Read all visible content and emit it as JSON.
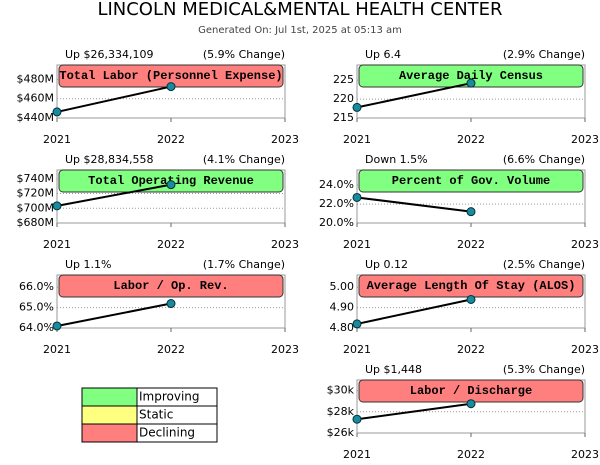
{
  "title": "LINCOLN MEDICAL&MENTAL HEALTH CENTER",
  "subtitle": "Generated On: Jul 1st, 2025 at 05:13 am",
  "chart_data": [
    {
      "type": "line",
      "title": "Total Labor (Personnel Expense)",
      "change": "Up $26,334,109",
      "percent_change": "(5.9% Change)",
      "color": "#ff7f7f",
      "x": [
        2021,
        2022
      ],
      "values": [
        446.3,
        472.6
      ],
      "xlim": [
        2021,
        2023
      ],
      "xticks": [
        2021,
        2022,
        2023
      ],
      "ylim": [
        440,
        495
      ],
      "yticks": [
        {
          "value": 440,
          "label": "$440M"
        },
        {
          "value": 460,
          "label": "$460M"
        },
        {
          "value": 480,
          "label": "$480M"
        }
      ]
    },
    {
      "type": "line",
      "title": "Average Daily Census",
      "change": "Up 6.4",
      "percent_change": "(2.9% Change)",
      "color": "#80ff80",
      "x": [
        2021,
        2022
      ],
      "values": [
        217.8,
        224.2
      ],
      "xlim": [
        2021,
        2023
      ],
      "xticks": [
        2021,
        2022,
        2023
      ],
      "ylim": [
        215,
        229
      ],
      "yticks": [
        215,
        220,
        225
      ]
    },
    {
      "type": "line",
      "title": "Total Operating Revenue",
      "change": "Up $28,834,558",
      "percent_change": "(4.1% Change)",
      "color": "#80ff80",
      "x": [
        2021,
        2022
      ],
      "values": [
        703.3,
        732.1
      ],
      "xlim": [
        2021,
        2023
      ],
      "xticks": [
        2021,
        2022,
        2023
      ],
      "ylim": [
        680,
        752
      ],
      "yticks": [
        {
          "value": 680,
          "label": "$680M"
        },
        {
          "value": 700,
          "label": "$700M"
        },
        {
          "value": 720,
          "label": "$720M"
        },
        {
          "value": 740,
          "label": "$740M"
        }
      ]
    },
    {
      "type": "line",
      "title": "Percent of Gov. Volume",
      "change": "Down 1.5%",
      "percent_change": "(6.6% Change)",
      "color": "#80ff80",
      "x": [
        2021,
        2022
      ],
      "values": [
        22.7,
        21.2
      ],
      "xlim": [
        2021,
        2023
      ],
      "xticks": [
        2021,
        2022,
        2023
      ],
      "ylim": [
        20,
        25.6
      ],
      "yticks": [
        {
          "value": 20,
          "label": "20.0%"
        },
        {
          "value": 22,
          "label": "22.0%"
        },
        {
          "value": 24,
          "label": "24.0%"
        }
      ]
    },
    {
      "type": "line",
      "title": "Labor / Op. Rev.",
      "change": "Up 1.1%",
      "percent_change": "(1.7% Change)",
      "color": "#ff7f7f",
      "x": [
        2021,
        2022
      ],
      "values": [
        64.1,
        65.2
      ],
      "xlim": [
        2021,
        2023
      ],
      "xticks": [
        2021,
        2022,
        2023
      ],
      "ylim": [
        64,
        66.6
      ],
      "yticks": [
        {
          "value": 64,
          "label": "64.0%"
        },
        {
          "value": 65,
          "label": "65.0%"
        },
        {
          "value": 66,
          "label": "66.0%"
        }
      ]
    },
    {
      "type": "line",
      "title": "Average Length Of Stay (ALOS)",
      "change": "Up 0.12",
      "percent_change": "(2.5% Change)",
      "color": "#ff7f7f",
      "x": [
        2021,
        2022
      ],
      "values": [
        4.82,
        4.94
      ],
      "xlim": [
        2021,
        2023
      ],
      "xticks": [
        2021,
        2022,
        2023
      ],
      "ylim": [
        4.8,
        5.06
      ],
      "yticks": [
        {
          "value": 4.8,
          "label": "4.80"
        },
        {
          "value": 4.9,
          "label": "4.90"
        },
        {
          "value": 5,
          "label": "5.00"
        }
      ]
    },
    {
      "type": "line",
      "title": "Labor / Discharge",
      "change": "Up $1,448",
      "percent_change": "(5.3% Change)",
      "color": "#ff7f7f",
      "x": [
        2021,
        2022
      ],
      "values": [
        27.3,
        28.76
      ],
      "xlim": [
        2021,
        2023
      ],
      "xticks": [
        2021,
        2022,
        2023
      ],
      "ylim": [
        26,
        31
      ],
      "yticks": [
        {
          "value": 26,
          "label": "$26k"
        },
        {
          "value": 28,
          "label": "$28k"
        },
        {
          "value": 30,
          "label": "$30k"
        }
      ]
    }
  ],
  "legend": [
    {
      "label": "Improving",
      "color": "#80ff80"
    },
    {
      "label": "Static",
      "color": "#ffff80"
    },
    {
      "label": "Declining",
      "color": "#ff7f7f"
    }
  ]
}
